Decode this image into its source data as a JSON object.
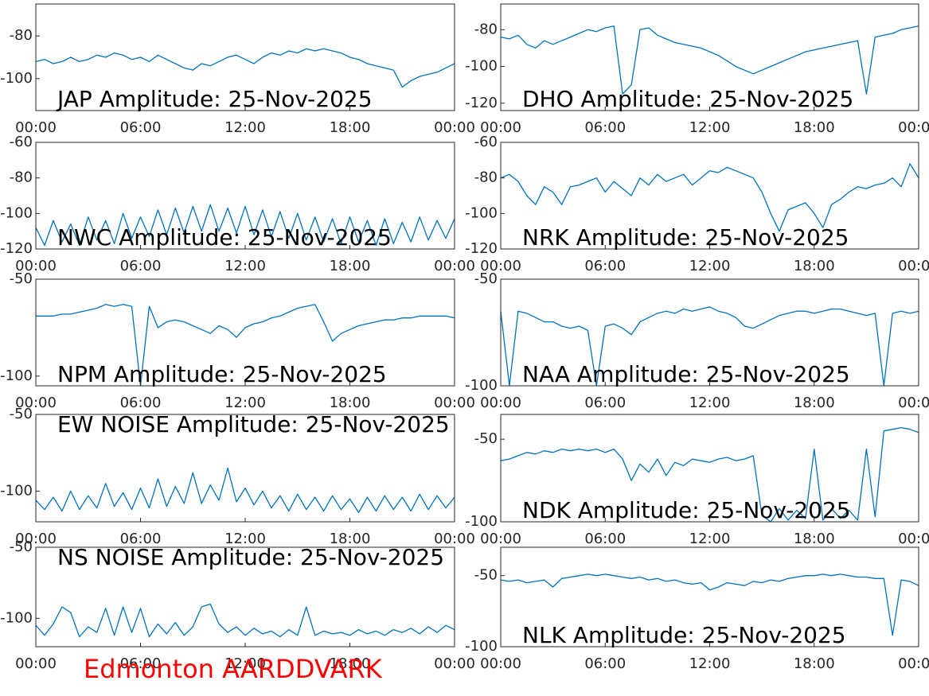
{
  "chart_data": [
    {
      "type": "line",
      "title": "JAP Amplitude: 25-Nov-2025",
      "title_position": "bottom",
      "color": "#0072bd",
      "xlim": [
        0,
        24
      ],
      "xticks": [
        {
          "value": 0,
          "label": "00:00"
        },
        {
          "value": 6,
          "label": "06:00"
        },
        {
          "value": 12,
          "label": "12:00"
        },
        {
          "value": 18,
          "label": "18:00"
        },
        {
          "value": 24,
          "label": "00:00"
        }
      ],
      "ylim": [
        -115,
        -65
      ],
      "yticks": [
        -80,
        -100
      ],
      "x": [
        0,
        0.5,
        1,
        1.5,
        2,
        2.5,
        3,
        3.5,
        4,
        4.5,
        5,
        5.5,
        6,
        6.5,
        7,
        7.5,
        8,
        8.5,
        9,
        9.5,
        10,
        10.5,
        11,
        11.5,
        12,
        12.5,
        13,
        13.5,
        14,
        14.5,
        15,
        15.5,
        16,
        16.5,
        17,
        17.5,
        18,
        18.5,
        19,
        19.5,
        20,
        20.5,
        21,
        21.5,
        22,
        22.5,
        23,
        23.5,
        24
      ],
      "values": [
        -92,
        -91,
        -93,
        -92,
        -90,
        -92,
        -91,
        -89,
        -90,
        -88,
        -89,
        -91,
        -90,
        -92,
        -89,
        -91,
        -93,
        -95,
        -96,
        -93,
        -94,
        -92,
        -90,
        -89,
        -91,
        -93,
        -90,
        -88,
        -89,
        -87,
        -88,
        -86,
        -87,
        -86,
        -87,
        -88,
        -90,
        -91,
        -93,
        -94,
        -95,
        -96,
        -104,
        -101,
        -99,
        -98,
        -97,
        -95,
        -93
      ]
    },
    {
      "type": "line",
      "title": "DHO Amplitude: 25-Nov-2025",
      "title_position": "bottom",
      "color": "#0072bd",
      "xlim": [
        0,
        24
      ],
      "xticks": [
        {
          "value": 0,
          "label": "00:00"
        },
        {
          "value": 6,
          "label": "06:00"
        },
        {
          "value": 12,
          "label": "12:00"
        },
        {
          "value": 18,
          "label": "18:00"
        },
        {
          "value": 24,
          "label": "00:00"
        }
      ],
      "ylim": [
        -124,
        -66
      ],
      "yticks": [
        -80,
        -100,
        -120
      ],
      "x": [
        0,
        0.5,
        1,
        1.5,
        2,
        2.5,
        3,
        3.5,
        4,
        4.5,
        5,
        5.5,
        6,
        6.5,
        7,
        7.5,
        8,
        8.5,
        9,
        9.5,
        10,
        10.5,
        11,
        11.5,
        12,
        12.5,
        13,
        13.5,
        14,
        14.5,
        15,
        15.5,
        16,
        16.5,
        17,
        17.5,
        18,
        18.5,
        19,
        19.5,
        20,
        20.5,
        21,
        21.5,
        22,
        22.5,
        23,
        23.5,
        24
      ],
      "values": [
        -84,
        -85,
        -83,
        -88,
        -90,
        -86,
        -88,
        -86,
        -84,
        -82,
        -80,
        -81,
        -79,
        -78,
        -115,
        -110,
        -80,
        -79,
        -83,
        -85,
        -87,
        -88,
        -89,
        -90,
        -92,
        -94,
        -97,
        -100,
        -102,
        -104,
        -102,
        -100,
        -98,
        -96,
        -94,
        -92,
        -91,
        -90,
        -89,
        -88,
        -87,
        -86,
        -115,
        -84,
        -83,
        -82,
        -80,
        -79,
        -78
      ]
    },
    {
      "type": "line",
      "title": "NWC Amplitude: 25-Nov-2025",
      "title_position": "bottom",
      "color": "#0072bd",
      "xlim": [
        0,
        24
      ],
      "xticks": [
        {
          "value": 0,
          "label": "00:00"
        },
        {
          "value": 6,
          "label": "06:00"
        },
        {
          "value": 12,
          "label": "12:00"
        },
        {
          "value": 18,
          "label": "18:00"
        },
        {
          "value": 24,
          "label": "00:00"
        }
      ],
      "ylim": [
        -120,
        -60
      ],
      "yticks": [
        -60,
        -80,
        -100,
        -120
      ],
      "x": [
        0,
        0.5,
        1,
        1.5,
        2,
        2.5,
        3,
        3.5,
        4,
        4.5,
        5,
        5.5,
        6,
        6.5,
        7,
        7.5,
        8,
        8.5,
        9,
        9.5,
        10,
        10.5,
        11,
        11.5,
        12,
        12.5,
        13,
        13.5,
        14,
        14.5,
        15,
        15.5,
        16,
        16.5,
        17,
        17.5,
        18,
        18.5,
        19,
        19.5,
        20,
        20.5,
        21,
        21.5,
        22,
        22.5,
        23,
        23.5,
        24
      ],
      "values": [
        -108,
        -118,
        -104,
        -116,
        -106,
        -118,
        -102,
        -115,
        -104,
        -117,
        -100,
        -114,
        -102,
        -113,
        -98,
        -112,
        -97,
        -111,
        -96,
        -110,
        -95,
        -110,
        -97,
        -111,
        -96,
        -112,
        -98,
        -113,
        -99,
        -114,
        -100,
        -115,
        -102,
        -116,
        -103,
        -117,
        -102,
        -116,
        -104,
        -118,
        -103,
        -117,
        -105,
        -116,
        -102,
        -115,
        -104,
        -114,
        -103
      ]
    },
    {
      "type": "line",
      "title": "NRK Amplitude: 25-Nov-2025",
      "title_position": "bottom",
      "color": "#0072bd",
      "xlim": [
        0,
        24
      ],
      "xticks": [
        {
          "value": 0,
          "label": "00:00"
        },
        {
          "value": 6,
          "label": "06:00"
        },
        {
          "value": 12,
          "label": "12:00"
        },
        {
          "value": 18,
          "label": "18:00"
        },
        {
          "value": 24,
          "label": "00:00"
        }
      ],
      "ylim": [
        -120,
        -60
      ],
      "yticks": [
        -60,
        -80,
        -100,
        -120
      ],
      "x": [
        0,
        0.5,
        1,
        1.5,
        2,
        2.5,
        3,
        3.5,
        4,
        4.5,
        5,
        5.5,
        6,
        6.5,
        7,
        7.5,
        8,
        8.5,
        9,
        9.5,
        10,
        10.5,
        11,
        11.5,
        12,
        12.5,
        13,
        13.5,
        14,
        14.5,
        15,
        15.5,
        16,
        16.5,
        17,
        17.5,
        18,
        18.5,
        19,
        19.5,
        20,
        20.5,
        21,
        21.5,
        22,
        22.5,
        23,
        23.5,
        24
      ],
      "values": [
        -80,
        -78,
        -82,
        -90,
        -95,
        -85,
        -88,
        -95,
        -85,
        -84,
        -82,
        -80,
        -88,
        -82,
        -86,
        -90,
        -80,
        -84,
        -78,
        -82,
        -80,
        -78,
        -84,
        -80,
        -76,
        -77,
        -74,
        -76,
        -78,
        -80,
        -88,
        -100,
        -110,
        -98,
        -96,
        -94,
        -100,
        -108,
        -95,
        -92,
        -88,
        -85,
        -86,
        -84,
        -83,
        -80,
        -85,
        -72,
        -80
      ]
    },
    {
      "type": "line",
      "title": "NPM Amplitude: 25-Nov-2025",
      "title_position": "bottom",
      "color": "#0072bd",
      "xlim": [
        0,
        24
      ],
      "xticks": [
        {
          "value": 0,
          "label": "00:00"
        },
        {
          "value": 6,
          "label": "06:00"
        },
        {
          "value": 12,
          "label": "12:00"
        },
        {
          "value": 18,
          "label": "18:00"
        },
        {
          "value": 24,
          "label": "00:00"
        }
      ],
      "ylim": [
        -105,
        -50
      ],
      "yticks": [
        -50,
        -100
      ],
      "x": [
        0,
        0.5,
        1,
        1.5,
        2,
        2.5,
        3,
        3.5,
        4,
        4.5,
        5,
        5.5,
        6,
        6.5,
        7,
        7.5,
        8,
        8.5,
        9,
        9.5,
        10,
        10.5,
        11,
        11.5,
        12,
        12.5,
        13,
        13.5,
        14,
        14.5,
        15,
        15.5,
        16,
        16.5,
        17,
        17.5,
        18,
        18.5,
        19,
        19.5,
        20,
        20.5,
        21,
        21.5,
        22,
        22.5,
        23,
        23.5,
        24
      ],
      "values": [
        -69,
        -69,
        -69,
        -68,
        -68,
        -67,
        -66,
        -65,
        -63,
        -64,
        -63,
        -64,
        -105,
        -64,
        -75,
        -72,
        -71,
        -72,
        -74,
        -76,
        -78,
        -74,
        -76,
        -80,
        -75,
        -73,
        -72,
        -70,
        -69,
        -67,
        -65,
        -64,
        -63,
        -72,
        -82,
        -78,
        -76,
        -74,
        -73,
        -72,
        -71,
        -71,
        -70,
        -70,
        -69,
        -69,
        -69,
        -69,
        -70
      ]
    },
    {
      "type": "line",
      "title": "NAA Amplitude: 25-Nov-2025",
      "title_position": "bottom",
      "color": "#0072bd",
      "xlim": [
        0,
        24
      ],
      "xticks": [
        {
          "value": 0,
          "label": "00:00"
        },
        {
          "value": 6,
          "label": "06:00"
        },
        {
          "value": 12,
          "label": "12:00"
        },
        {
          "value": 18,
          "label": "18:00"
        },
        {
          "value": 24,
          "label": "00:00"
        }
      ],
      "ylim": [
        -100,
        -50
      ],
      "yticks": [
        -50,
        -100
      ],
      "x": [
        0,
        0.5,
        1,
        1.5,
        2,
        2.5,
        3,
        3.5,
        4,
        4.5,
        5,
        5.5,
        6,
        6.5,
        7,
        7.5,
        8,
        8.5,
        9,
        9.5,
        10,
        10.5,
        11,
        11.5,
        12,
        12.5,
        13,
        13.5,
        14,
        14.5,
        15,
        15.5,
        16,
        16.5,
        17,
        17.5,
        18,
        18.5,
        19,
        19.5,
        20,
        20.5,
        21,
        21.5,
        22,
        22.5,
        23,
        23.5,
        24
      ],
      "values": [
        -65,
        -100,
        -65,
        -66,
        -68,
        -70,
        -70,
        -72,
        -73,
        -72,
        -74,
        -100,
        -72,
        -71,
        -73,
        -76,
        -70,
        -68,
        -66,
        -65,
        -66,
        -64,
        -65,
        -64,
        -63,
        -65,
        -66,
        -68,
        -72,
        -73,
        -71,
        -69,
        -67,
        -66,
        -65,
        -65,
        -66,
        -65,
        -64,
        -64,
        -65,
        -66,
        -67,
        -66,
        -100,
        -66,
        -65,
        -66,
        -65
      ]
    },
    {
      "type": "line",
      "title": "EW NOISE Amplitude: 25-Nov-2025",
      "title_position": "top",
      "color": "#0072bd",
      "xlim": [
        0,
        24
      ],
      "xticks": [
        {
          "value": 0,
          "label": "00:00"
        },
        {
          "value": 6,
          "label": "06:00"
        },
        {
          "value": 12,
          "label": "12:00"
        },
        {
          "value": 18,
          "label": "18:00"
        },
        {
          "value": 24,
          "label": "00:00"
        }
      ],
      "ylim": [
        -120,
        -50
      ],
      "yticks": [
        -50,
        -100
      ],
      "x": [
        0,
        0.5,
        1,
        1.5,
        2,
        2.5,
        3,
        3.5,
        4,
        4.5,
        5,
        5.5,
        6,
        6.5,
        7,
        7.5,
        8,
        8.5,
        9,
        9.5,
        10,
        10.5,
        11,
        11.5,
        12,
        12.5,
        13,
        13.5,
        14,
        14.5,
        15,
        15.5,
        16,
        16.5,
        17,
        17.5,
        18,
        18.5,
        19,
        19.5,
        20,
        20.5,
        21,
        21.5,
        22,
        22.5,
        23,
        23.5,
        24
      ],
      "values": [
        -106,
        -112,
        -104,
        -113,
        -100,
        -112,
        -103,
        -111,
        -95,
        -110,
        -101,
        -112,
        -98,
        -111,
        -92,
        -110,
        -97,
        -108,
        -88,
        -108,
        -96,
        -106,
        -85,
        -107,
        -98,
        -109,
        -100,
        -111,
        -103,
        -113,
        -102,
        -112,
        -104,
        -113,
        -103,
        -112,
        -105,
        -114,
        -104,
        -113,
        -103,
        -112,
        -104,
        -113,
        -102,
        -112,
        -103,
        -111,
        -104
      ]
    },
    {
      "type": "line",
      "title": "NDK Amplitude: 25-Nov-2025",
      "title_position": "bottom",
      "color": "#0072bd",
      "xlim": [
        0,
        24
      ],
      "xticks": [
        {
          "value": 0,
          "label": "00:00"
        },
        {
          "value": 6,
          "label": "06:00"
        },
        {
          "value": 12,
          "label": "12:00"
        },
        {
          "value": 18,
          "label": "18:00"
        },
        {
          "value": 24,
          "label": "00:00"
        }
      ],
      "ylim": [
        -100,
        -35
      ],
      "yticks": [
        -50,
        -100
      ],
      "x": [
        0,
        0.5,
        1,
        1.5,
        2,
        2.5,
        3,
        3.5,
        4,
        4.5,
        5,
        5.5,
        6,
        6.5,
        7,
        7.5,
        8,
        8.5,
        9,
        9.5,
        10,
        10.5,
        11,
        11.5,
        12,
        12.5,
        13,
        13.5,
        14,
        14.5,
        15,
        15.5,
        16,
        16.5,
        17,
        17.5,
        18,
        18.5,
        19,
        19.5,
        20,
        20.5,
        21,
        21.5,
        22,
        22.5,
        23,
        23.5,
        24
      ],
      "values": [
        -63,
        -62,
        -60,
        -58,
        -59,
        -57,
        -58,
        -56,
        -57,
        -56,
        -57,
        -56,
        -58,
        -56,
        -62,
        -75,
        -65,
        -70,
        -62,
        -72,
        -64,
        -66,
        -62,
        -63,
        -64,
        -62,
        -61,
        -63,
        -62,
        -60,
        -96,
        -100,
        -92,
        -99,
        -93,
        -98,
        -56,
        -99,
        -92,
        -98,
        -93,
        -99,
        -56,
        -97,
        -45,
        -44,
        -43,
        -44,
        -46
      ]
    },
    {
      "type": "line",
      "title": "NS NOISE Amplitude: 25-Nov-2025",
      "title_position": "top",
      "color": "#0072bd",
      "xlim": [
        0,
        24
      ],
      "xticks": [
        {
          "value": 0,
          "label": "00:00"
        },
        {
          "value": 6,
          "label": "06:00"
        },
        {
          "value": 12,
          "label": "12:00"
        },
        {
          "value": 18,
          "label": "18:00"
        },
        {
          "value": 24,
          "label": "00:00"
        }
      ],
      "ylim": [
        -120,
        -50
      ],
      "yticks": [
        -50,
        -100
      ],
      "x": [
        0,
        0.5,
        1,
        1.5,
        2,
        2.5,
        3,
        3.5,
        4,
        4.5,
        5,
        5.5,
        6,
        6.5,
        7,
        7.5,
        8,
        8.5,
        9,
        9.5,
        10,
        10.5,
        11,
        11.5,
        12,
        12.5,
        13,
        13.5,
        14,
        14.5,
        15,
        15.5,
        16,
        16.5,
        17,
        17.5,
        18,
        18.5,
        19,
        19.5,
        20,
        20.5,
        21,
        21.5,
        22,
        22.5,
        23,
        23.5,
        24
      ],
      "values": [
        -105,
        -112,
        -104,
        -92,
        -96,
        -113,
        -106,
        -110,
        -93,
        -112,
        -92,
        -110,
        -93,
        -113,
        -104,
        -111,
        -103,
        -112,
        -106,
        -92,
        -90,
        -104,
        -110,
        -106,
        -112,
        -107,
        -111,
        -109,
        -113,
        -108,
        -112,
        -92,
        -112,
        -109,
        -111,
        -110,
        -112,
        -108,
        -111,
        -109,
        -112,
        -108,
        -110,
        -107,
        -111,
        -106,
        -110,
        -105,
        -108
      ]
    },
    {
      "type": "line",
      "title": "NLK Amplitude: 25-Nov-2025",
      "title_position": "bottom",
      "color": "#0072bd",
      "xlim": [
        0,
        24
      ],
      "xticks": [
        {
          "value": 0,
          "label": "00:00"
        },
        {
          "value": 6,
          "label": "06:00"
        },
        {
          "value": 12,
          "label": "12:00"
        },
        {
          "value": 18,
          "label": "18:00"
        },
        {
          "value": 24,
          "label": "00:00"
        }
      ],
      "ylim": [
        -100,
        -30
      ],
      "yticks": [
        -50,
        -100
      ],
      "x": [
        0,
        0.5,
        1,
        1.5,
        2,
        2.5,
        3,
        3.5,
        4,
        4.5,
        5,
        5.5,
        6,
        6.5,
        7,
        7.5,
        8,
        8.5,
        9,
        9.5,
        10,
        10.5,
        11,
        11.5,
        12,
        12.5,
        13,
        13.5,
        14,
        14.5,
        15,
        15.5,
        16,
        16.5,
        17,
        17.5,
        18,
        18.5,
        19,
        19.5,
        20,
        20.5,
        21,
        21.5,
        22,
        22.5,
        23,
        23.5,
        24
      ],
      "values": [
        -53,
        -54,
        -53,
        -55,
        -54,
        -53,
        -58,
        -52,
        -51,
        -50,
        -49,
        -50,
        -49,
        -50,
        -51,
        -52,
        -51,
        -53,
        -52,
        -54,
        -53,
        -55,
        -56,
        -55,
        -60,
        -58,
        -55,
        -56,
        -57,
        -54,
        -55,
        -53,
        -54,
        -52,
        -51,
        -50,
        -50,
        -49,
        -50,
        -49,
        -50,
        -51,
        -51,
        -52,
        -52,
        -92,
        -53,
        -54,
        -57
      ]
    }
  ],
  "footer": "Edmonton AARDDVARK"
}
